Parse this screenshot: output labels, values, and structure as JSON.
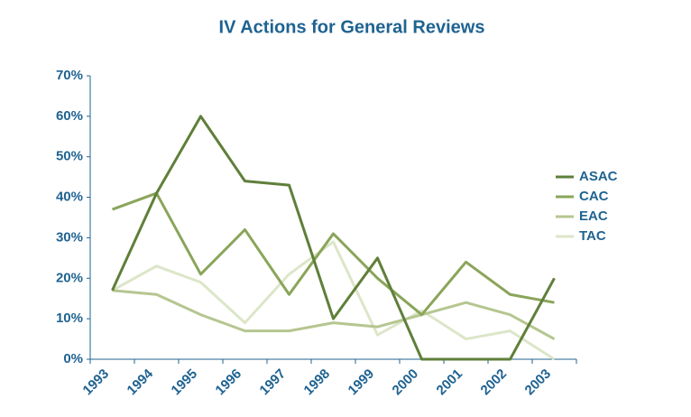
{
  "chart_data": {
    "type": "line",
    "title": "IV Actions for General Reviews",
    "categories": [
      "1993",
      "1994",
      "1995",
      "1996",
      "1997",
      "1998",
      "1999",
      "2000",
      "2001",
      "2002",
      "2003"
    ],
    "series": [
      {
        "name": "ASAC",
        "color": "#5f7f3a",
        "values": [
          17,
          41,
          60,
          44,
          43,
          10,
          25,
          0,
          0,
          0,
          20
        ]
      },
      {
        "name": "CAC",
        "color": "#8aa55a",
        "values": [
          37,
          41,
          21,
          32,
          16,
          31,
          20,
          11,
          24,
          16,
          14
        ]
      },
      {
        "name": "EAC",
        "color": "#b5c690",
        "values": [
          17,
          16,
          11,
          7,
          7,
          9,
          8,
          11,
          14,
          11,
          5
        ]
      },
      {
        "name": "TAC",
        "color": "#dce6c8",
        "values": [
          17,
          23,
          19,
          9,
          21,
          29,
          6,
          12,
          5,
          7,
          0
        ]
      }
    ],
    "ylim": [
      0,
      70
    ],
    "yticks": [
      {
        "value": 0,
        "label": "0%"
      },
      {
        "value": 10,
        "label": "10%"
      },
      {
        "value": 20,
        "label": "20%"
      },
      {
        "value": 30,
        "label": "30%"
      },
      {
        "value": 40,
        "label": "40%"
      },
      {
        "value": 50,
        "label": "50%"
      },
      {
        "value": 60,
        "label": "60%"
      },
      {
        "value": 70,
        "label": "70%"
      }
    ],
    "legend": "right"
  }
}
